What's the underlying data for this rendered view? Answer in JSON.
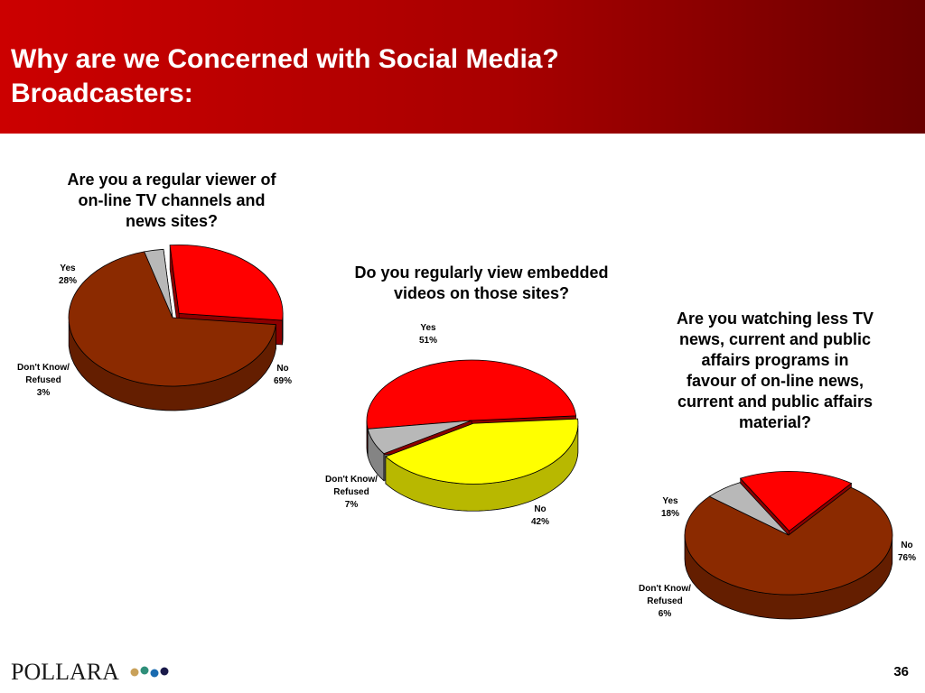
{
  "header": {
    "title_line1": "Why are we Concerned with Social Media?",
    "title_line2": "Broadcasters:"
  },
  "colors": {
    "header_start": "#cc0000",
    "header_end": "#6a0000",
    "yes": "#ff0000",
    "no_brown": "#8b2a00",
    "no_yellow": "#ffff00",
    "dont_know": "#b8b8b8"
  },
  "chart_data": [
    {
      "type": "pie",
      "title_lines": [
        "Are you a regular viewer of",
        "on-line TV channels and",
        "news sites?"
      ],
      "slices": [
        {
          "label": "Yes",
          "value": 28,
          "value_label": "28%",
          "color": "#ff0000"
        },
        {
          "label": "No",
          "value": 69,
          "value_label": "69%",
          "color": "#8b2a00"
        },
        {
          "label_lines": [
            "Don't Know/",
            "Refused"
          ],
          "value": 3,
          "value_label": "3%",
          "color": "#b8b8b8"
        }
      ]
    },
    {
      "type": "pie",
      "title_lines": [
        "Do you regularly view embedded",
        "videos on those sites?"
      ],
      "slices": [
        {
          "label": "Yes",
          "value": 51,
          "value_label": "51%",
          "color": "#ff0000"
        },
        {
          "label": "No",
          "value": 42,
          "value_label": "42%",
          "color": "#ffff00"
        },
        {
          "label_lines": [
            "Don't Know/",
            "Refused"
          ],
          "value": 7,
          "value_label": "7%",
          "color": "#b8b8b8"
        }
      ]
    },
    {
      "type": "pie",
      "title_lines": [
        "Are you watching less TV",
        "news, current and public",
        "affairs programs in",
        "favour of on-line news,",
        "current and public affairs",
        "material?"
      ],
      "slices": [
        {
          "label": "Yes",
          "value": 18,
          "value_label": "18%",
          "color": "#ff0000"
        },
        {
          "label": "No",
          "value": 76,
          "value_label": "76%",
          "color": "#8b2a00"
        },
        {
          "label_lines": [
            "Don't Know/",
            "Refused"
          ],
          "value": 6,
          "value_label": "6%",
          "color": "#b8b8b8"
        }
      ]
    }
  ],
  "footer": {
    "logo_text": "POLLARA",
    "logo_dot_colors": [
      "#c9a15a",
      "#2f8f7a",
      "#1a6bb0",
      "#1a1a4a"
    ],
    "page_number": "36"
  }
}
